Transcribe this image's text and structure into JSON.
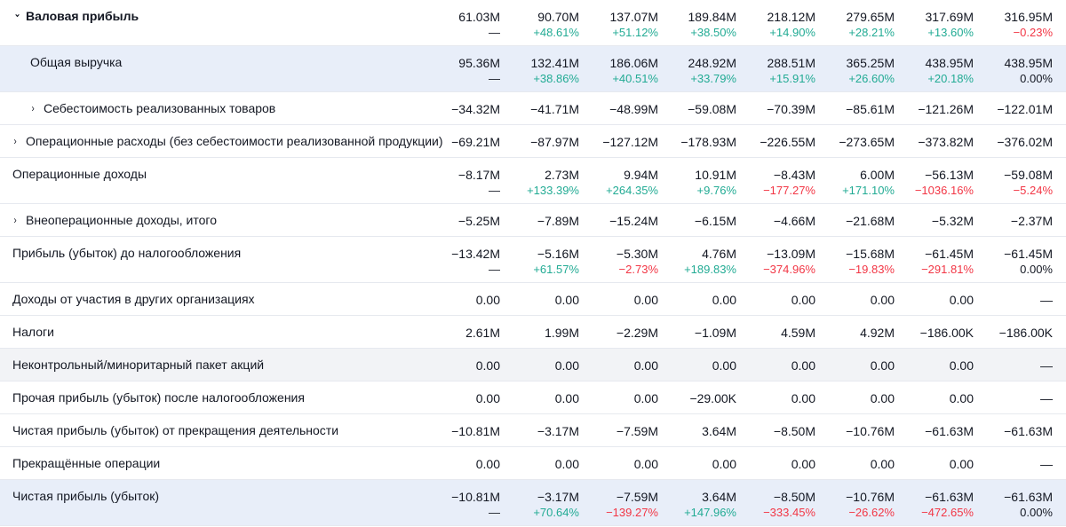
{
  "rows": [
    {
      "label": "Валовая прибыль",
      "bold": true,
      "chevron": "down",
      "indent": 0,
      "highlight": "",
      "values": [
        "61.03M",
        "90.70M",
        "137.07M",
        "189.84M",
        "218.12M",
        "279.65M",
        "317.69M",
        "316.95M"
      ],
      "changes": [
        "—",
        "+48.61%",
        "+51.12%",
        "+38.50%",
        "+14.90%",
        "+28.21%",
        "+13.60%",
        "−0.23%"
      ]
    },
    {
      "label": "Общая выручка",
      "bold": false,
      "chevron": "",
      "indent": 1,
      "highlight": "blue",
      "values": [
        "95.36M",
        "132.41M",
        "186.06M",
        "248.92M",
        "288.51M",
        "365.25M",
        "438.95M",
        "438.95M"
      ],
      "changes": [
        "—",
        "+38.86%",
        "+40.51%",
        "+33.79%",
        "+15.91%",
        "+26.60%",
        "+20.18%",
        "0.00%"
      ]
    },
    {
      "label": "Себестоимость реализованных товаров",
      "bold": false,
      "chevron": "right",
      "indent": 1,
      "highlight": "",
      "values": [
        "−34.32M",
        "−41.71M",
        "−48.99M",
        "−59.08M",
        "−70.39M",
        "−85.61M",
        "−121.26M",
        "−122.01M"
      ],
      "changes": []
    },
    {
      "label": "Операционные расходы (без себестоимости реализованной продукции)",
      "bold": false,
      "chevron": "right",
      "indent": 0,
      "highlight": "",
      "values": [
        "−69.21M",
        "−87.97M",
        "−127.12M",
        "−178.93M",
        "−226.55M",
        "−273.65M",
        "−373.82M",
        "−376.02M"
      ],
      "changes": []
    },
    {
      "label": "Операционные доходы",
      "bold": false,
      "chevron": "",
      "indent": 0,
      "highlight": "",
      "values": [
        "−8.17M",
        "2.73M",
        "9.94M",
        "10.91M",
        "−8.43M",
        "6.00M",
        "−56.13M",
        "−59.08M"
      ],
      "changes": [
        "—",
        "+133.39%",
        "+264.35%",
        "+9.76%",
        "−177.27%",
        "+171.10%",
        "−1036.16%",
        "−5.24%"
      ]
    },
    {
      "label": "Внеоперационные доходы, итого",
      "bold": false,
      "chevron": "right",
      "indent": 0,
      "highlight": "",
      "values": [
        "−5.25M",
        "−7.89M",
        "−15.24M",
        "−6.15M",
        "−4.66M",
        "−21.68M",
        "−5.32M",
        "−2.37M"
      ],
      "changes": []
    },
    {
      "label": "Прибыль (убыток) до налогообложения",
      "bold": false,
      "chevron": "",
      "indent": 0,
      "highlight": "",
      "values": [
        "−13.42M",
        "−5.16M",
        "−5.30M",
        "4.76M",
        "−13.09M",
        "−15.68M",
        "−61.45M",
        "−61.45M"
      ],
      "changes": [
        "—",
        "+61.57%",
        "−2.73%",
        "+189.83%",
        "−374.96%",
        "−19.83%",
        "−291.81%",
        "0.00%"
      ]
    },
    {
      "label": "Доходы от участия в других организациях",
      "bold": false,
      "chevron": "",
      "indent": 0,
      "highlight": "",
      "values": [
        "0.00",
        "0.00",
        "0.00",
        "0.00",
        "0.00",
        "0.00",
        "0.00",
        "—"
      ],
      "changes": []
    },
    {
      "label": "Налоги",
      "bold": false,
      "chevron": "",
      "indent": 0,
      "highlight": "",
      "values": [
        "2.61M",
        "1.99M",
        "−2.29M",
        "−1.09M",
        "4.59M",
        "4.92M",
        "−186.00K",
        "−186.00K"
      ],
      "changes": []
    },
    {
      "label": "Неконтрольный/миноритарный пакет акций",
      "bold": false,
      "chevron": "",
      "indent": 0,
      "highlight": "gray",
      "values": [
        "0.00",
        "0.00",
        "0.00",
        "0.00",
        "0.00",
        "0.00",
        "0.00",
        "—"
      ],
      "changes": []
    },
    {
      "label": "Прочая прибыль (убыток) после налогообложения",
      "bold": false,
      "chevron": "",
      "indent": 0,
      "highlight": "",
      "values": [
        "0.00",
        "0.00",
        "0.00",
        "−29.00K",
        "0.00",
        "0.00",
        "0.00",
        "—"
      ],
      "changes": []
    },
    {
      "label": "Чистая прибыль (убыток) от прекращения деятельности",
      "bold": false,
      "chevron": "",
      "indent": 0,
      "highlight": "",
      "values": [
        "−10.81M",
        "−3.17M",
        "−7.59M",
        "3.64M",
        "−8.50M",
        "−10.76M",
        "−61.63M",
        "−61.63M"
      ],
      "changes": []
    },
    {
      "label": "Прекращённые операции",
      "bold": false,
      "chevron": "",
      "indent": 0,
      "highlight": "",
      "values": [
        "0.00",
        "0.00",
        "0.00",
        "0.00",
        "0.00",
        "0.00",
        "0.00",
        "—"
      ],
      "changes": []
    },
    {
      "label": "Чистая прибыль (убыток)",
      "bold": false,
      "chevron": "",
      "indent": 0,
      "highlight": "blue",
      "values": [
        "−10.81M",
        "−3.17M",
        "−7.59M",
        "3.64M",
        "−8.50M",
        "−10.76M",
        "−61.63M",
        "−61.63M"
      ],
      "changes": [
        "—",
        "+70.64%",
        "−139.27%",
        "+147.96%",
        "−333.45%",
        "−26.62%",
        "−472.65%",
        "0.00%"
      ]
    }
  ],
  "colors": {
    "positive": "#22ab94",
    "negative": "#f23645",
    "highlight_row": "#e8eef9",
    "gray_row": "#f2f3f6"
  },
  "icons": {
    "expanded": "chevron-down-icon",
    "collapsed": "chevron-right-icon"
  }
}
